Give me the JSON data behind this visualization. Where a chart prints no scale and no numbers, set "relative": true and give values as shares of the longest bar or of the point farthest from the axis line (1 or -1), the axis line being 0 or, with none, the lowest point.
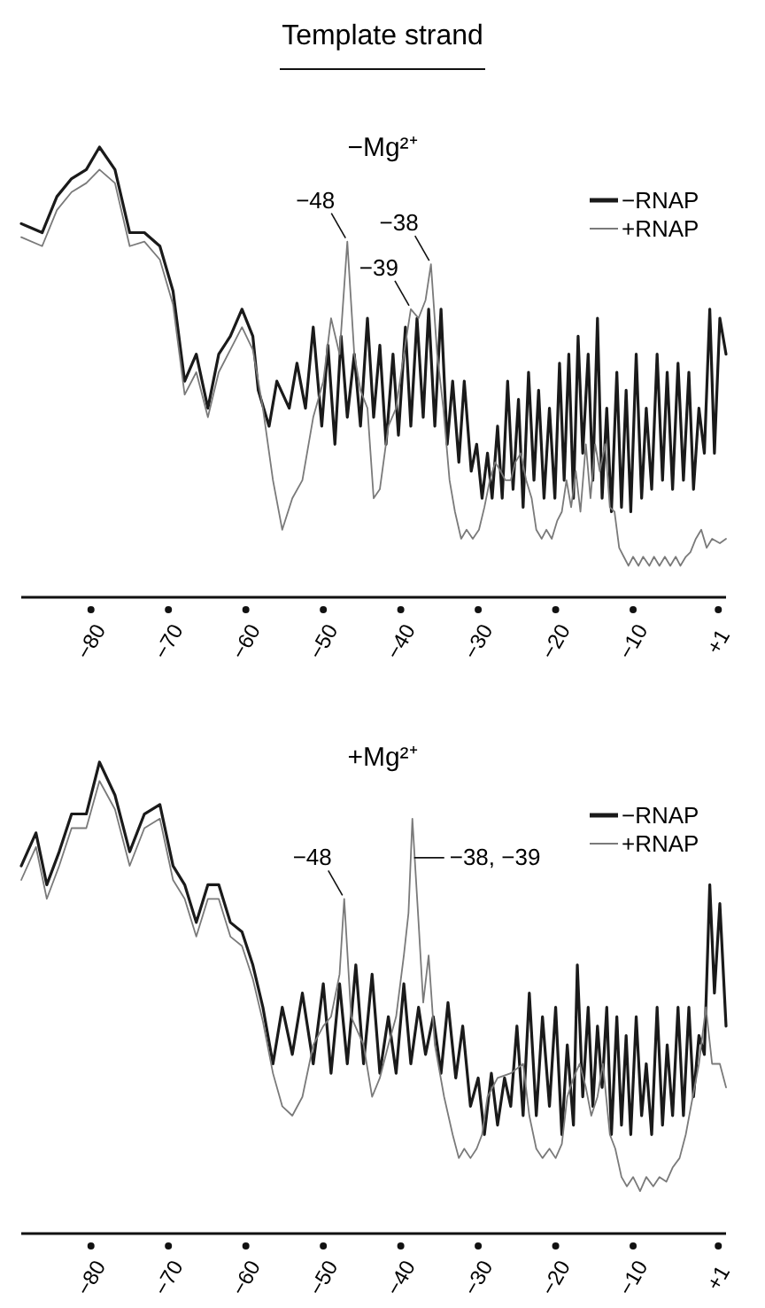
{
  "chart_data": [
    {
      "type": "line",
      "title": "Template strand",
      "subtitle": "−Mg²⁺",
      "relative": true,
      "legend": "right",
      "xlim": [
        -89,
        2
      ],
      "xticks": [
        -80,
        -70,
        -60,
        -50,
        -40,
        -30,
        -20,
        -10,
        {
          "value": 1,
          "label": "+1"
        }
      ],
      "annotations": [
        {
          "text": "−48",
          "x": -46.9,
          "y": 0.79
        },
        {
          "text": "−39",
          "x": -38.7,
          "y": 0.64
        },
        {
          "text": "−38",
          "x": -36.1,
          "y": 0.74
        }
      ],
      "series": [
        {
          "name": "−RNAP",
          "color": "#1a1a1a",
          "x": [
            -89,
            -86.3,
            -84.4,
            -82.5,
            -80.6,
            -78.9,
            -76.9,
            -75.0,
            -73.1,
            -71.1,
            -69.4,
            -67.9,
            -66.4,
            -64.9,
            -63.5,
            -62.0,
            -60.5,
            -59.1,
            -58.4,
            -57.0,
            -56.0,
            -54.4,
            -53.4,
            -52.3,
            -51.3,
            -50.2,
            -49.4,
            -48.5,
            -47.7,
            -46.9,
            -46.0,
            -45.2,
            -44.3,
            -43.5,
            -42.7,
            -41.9,
            -41.0,
            -40.3,
            -39.4,
            -38.7,
            -37.9,
            -37.1,
            -36.4,
            -35.6,
            -34.8,
            -34.0,
            -33.3,
            -32.5,
            -31.8,
            -30.9,
            -30.2,
            -29.5,
            -28.8,
            -28.2,
            -27.5,
            -26.9,
            -26.2,
            -25.5,
            -24.8,
            -24.2,
            -23.5,
            -22.8,
            -22.2,
            -21.5,
            -20.8,
            -20.1,
            -19.5,
            -18.9,
            -18.3,
            -17.7,
            -17.1,
            -16.5,
            -15.8,
            -15.2,
            -14.6,
            -14.0,
            -13.4,
            -12.8,
            -12.1,
            -11.5,
            -10.9,
            -10.3,
            -9.6,
            -8.9,
            -8.3,
            -7.6,
            -6.9,
            -6.2,
            -5.6,
            -4.9,
            -4.2,
            -3.5,
            -2.8,
            -2.2,
            -1.5,
            -0.8,
            -0.1,
            0.5,
            1.2,
            2.0
          ],
          "values": [
            0.83,
            0.81,
            0.89,
            0.93,
            0.95,
            1.0,
            0.95,
            0.81,
            0.81,
            0.78,
            0.68,
            0.48,
            0.54,
            0.42,
            0.54,
            0.58,
            0.64,
            0.58,
            0.46,
            0.38,
            0.48,
            0.42,
            0.52,
            0.42,
            0.6,
            0.38,
            0.56,
            0.34,
            0.58,
            0.4,
            0.54,
            0.38,
            0.62,
            0.4,
            0.56,
            0.34,
            0.54,
            0.36,
            0.6,
            0.38,
            0.62,
            0.4,
            0.64,
            0.38,
            0.64,
            0.34,
            0.48,
            0.3,
            0.48,
            0.28,
            0.34,
            0.22,
            0.32,
            0.22,
            0.38,
            0.22,
            0.48,
            0.24,
            0.44,
            0.2,
            0.5,
            0.26,
            0.46,
            0.22,
            0.42,
            0.22,
            0.52,
            0.26,
            0.54,
            0.22,
            0.58,
            0.32,
            0.54,
            0.26,
            0.62,
            0.22,
            0.42,
            0.19,
            0.5,
            0.2,
            0.46,
            0.19,
            0.54,
            0.22,
            0.42,
            0.24,
            0.54,
            0.26,
            0.5,
            0.24,
            0.52,
            0.26,
            0.5,
            0.24,
            0.42,
            0.32,
            0.64,
            0.32,
            0.62,
            0.54
          ]
        },
        {
          "name": "+RNAP",
          "color": "#7a7a7a",
          "x": [
            -89,
            -86.3,
            -84.4,
            -82.5,
            -80.6,
            -78.9,
            -76.9,
            -75.0,
            -73.1,
            -71.1,
            -69.4,
            -67.9,
            -66.4,
            -64.9,
            -63.5,
            -62.0,
            -60.5,
            -59.1,
            -57.8,
            -56.5,
            -55.3,
            -54.0,
            -52.7,
            -51.3,
            -50.0,
            -49.0,
            -47.9,
            -46.9,
            -46.0,
            -45.2,
            -44.3,
            -43.5,
            -42.7,
            -41.6,
            -40.6,
            -39.6,
            -38.7,
            -37.7,
            -36.8,
            -36.1,
            -35.3,
            -34.5,
            -33.7,
            -33.0,
            -32.2,
            -31.5,
            -30.7,
            -29.9,
            -29.2,
            -28.5,
            -27.8,
            -27.1,
            -26.5,
            -25.8,
            -25.2,
            -24.5,
            -23.8,
            -23.1,
            -22.5,
            -21.8,
            -21.2,
            -20.5,
            -19.8,
            -19.2,
            -18.6,
            -18.0,
            -17.4,
            -16.8,
            -16.1,
            -15.5,
            -14.9,
            -14.3,
            -13.6,
            -13.0,
            -12.4,
            -11.8,
            -11.2,
            -10.6,
            -10.0,
            -9.3,
            -8.7,
            -7.9,
            -7.3,
            -6.6,
            -5.9,
            -5.2,
            -4.5,
            -3.9,
            -3.2,
            -2.6,
            -1.9,
            -1.2,
            -0.5,
            0.2,
            1.2,
            2.0
          ],
          "values": [
            0.8,
            0.78,
            0.86,
            0.9,
            0.92,
            0.95,
            0.92,
            0.78,
            0.79,
            0.75,
            0.65,
            0.45,
            0.5,
            0.4,
            0.5,
            0.55,
            0.6,
            0.55,
            0.42,
            0.26,
            0.15,
            0.22,
            0.26,
            0.4,
            0.48,
            0.62,
            0.54,
            0.79,
            0.54,
            0.46,
            0.42,
            0.22,
            0.24,
            0.38,
            0.42,
            0.54,
            0.64,
            0.62,
            0.66,
            0.74,
            0.54,
            0.42,
            0.26,
            0.19,
            0.13,
            0.15,
            0.13,
            0.15,
            0.2,
            0.26,
            0.3,
            0.28,
            0.26,
            0.26,
            0.3,
            0.32,
            0.26,
            0.22,
            0.15,
            0.13,
            0.15,
            0.13,
            0.17,
            0.19,
            0.26,
            0.2,
            0.28,
            0.19,
            0.34,
            0.22,
            0.34,
            0.28,
            0.34,
            0.2,
            0.19,
            0.11,
            0.09,
            0.07,
            0.09,
            0.07,
            0.09,
            0.07,
            0.09,
            0.07,
            0.09,
            0.07,
            0.09,
            0.07,
            0.09,
            0.1,
            0.13,
            0.15,
            0.11,
            0.13,
            0.12,
            0.13
          ]
        }
      ]
    },
    {
      "type": "line",
      "subtitle": "+Mg²⁺",
      "relative": true,
      "legend": "right",
      "xlim": [
        -89,
        2
      ],
      "xticks": [
        -80,
        -70,
        -60,
        -50,
        -40,
        -30,
        -20,
        -10,
        {
          "value": 1,
          "label": "+1"
        }
      ],
      "annotations": [
        {
          "text": "−48",
          "x": -47.3,
          "y": 0.71
        },
        {
          "text": "−38, −39",
          "x": -38.5,
          "y": 0.88
        }
      ],
      "series": [
        {
          "name": "−RNAP",
          "color": "#1a1a1a",
          "x": [
            -89,
            -87.1,
            -85.7,
            -84.1,
            -82.5,
            -80.6,
            -78.9,
            -76.9,
            -75.0,
            -73.1,
            -71.1,
            -69.4,
            -67.9,
            -66.4,
            -64.9,
            -63.5,
            -62.0,
            -60.5,
            -59.1,
            -57.8,
            -56.5,
            -55.3,
            -54.0,
            -52.7,
            -51.3,
            -50.0,
            -49.0,
            -47.9,
            -46.9,
            -45.8,
            -44.8,
            -43.7,
            -42.7,
            -41.6,
            -40.6,
            -39.6,
            -38.7,
            -37.7,
            -36.8,
            -35.8,
            -34.8,
            -33.9,
            -32.9,
            -32.0,
            -31.0,
            -30.0,
            -29.2,
            -28.3,
            -27.5,
            -26.6,
            -25.8,
            -25.0,
            -24.2,
            -23.4,
            -22.5,
            -21.7,
            -20.8,
            -20.0,
            -19.2,
            -18.5,
            -17.7,
            -17.2,
            -16.5,
            -15.8,
            -15.2,
            -14.6,
            -14.0,
            -13.4,
            -12.8,
            -12.1,
            -11.5,
            -10.9,
            -10.3,
            -9.6,
            -8.9,
            -8.3,
            -7.6,
            -6.9,
            -6.2,
            -5.6,
            -4.9,
            -4.2,
            -3.5,
            -2.8,
            -2.2,
            -1.5,
            -0.8,
            -0.1,
            0.5,
            1.2,
            2.0
          ],
          "values": [
            0.78,
            0.85,
            0.74,
            0.81,
            0.89,
            0.89,
            1.0,
            0.93,
            0.81,
            0.89,
            0.91,
            0.78,
            0.74,
            0.66,
            0.74,
            0.74,
            0.66,
            0.64,
            0.57,
            0.48,
            0.36,
            0.48,
            0.38,
            0.51,
            0.36,
            0.53,
            0.34,
            0.53,
            0.36,
            0.57,
            0.36,
            0.55,
            0.34,
            0.46,
            0.34,
            0.53,
            0.36,
            0.48,
            0.38,
            0.46,
            0.34,
            0.49,
            0.33,
            0.44,
            0.27,
            0.33,
            0.21,
            0.34,
            0.23,
            0.33,
            0.27,
            0.44,
            0.25,
            0.51,
            0.25,
            0.46,
            0.27,
            0.48,
            0.21,
            0.4,
            0.23,
            0.57,
            0.29,
            0.48,
            0.27,
            0.44,
            0.31,
            0.48,
            0.21,
            0.46,
            0.23,
            0.42,
            0.21,
            0.46,
            0.25,
            0.36,
            0.21,
            0.48,
            0.23,
            0.4,
            0.25,
            0.48,
            0.25,
            0.48,
            0.29,
            0.42,
            0.38,
            0.74,
            0.51,
            0.7,
            0.44
          ]
        },
        {
          "name": "+RNAP",
          "color": "#7a7a7a",
          "x": [
            -89,
            -87.1,
            -85.7,
            -84.1,
            -82.5,
            -80.6,
            -78.9,
            -76.9,
            -75.0,
            -73.1,
            -71.1,
            -69.4,
            -67.9,
            -66.4,
            -64.9,
            -63.5,
            -62.0,
            -60.5,
            -59.1,
            -57.8,
            -56.5,
            -55.3,
            -54.0,
            -52.7,
            -51.3,
            -50.0,
            -49.0,
            -47.9,
            -47.3,
            -46.4,
            -44.8,
            -43.7,
            -42.7,
            -41.6,
            -40.6,
            -39.6,
            -39.0,
            -38.5,
            -37.7,
            -37.1,
            -36.4,
            -35.6,
            -34.4,
            -33.3,
            -32.5,
            -31.8,
            -31.0,
            -30.2,
            -29.5,
            -28.8,
            -27.5,
            -25.8,
            -24.2,
            -23.4,
            -22.5,
            -21.7,
            -20.8,
            -20.0,
            -19.2,
            -18.5,
            -17.7,
            -16.9,
            -16.1,
            -15.4,
            -14.6,
            -13.9,
            -13.0,
            -12.3,
            -11.5,
            -10.8,
            -10.0,
            -9.1,
            -8.3,
            -7.4,
            -6.6,
            -5.7,
            -4.9,
            -4.0,
            -3.2,
            -2.3,
            -1.5,
            -0.6,
            0.2,
            1.2,
            2.0
          ],
          "values": [
            0.75,
            0.82,
            0.71,
            0.78,
            0.86,
            0.86,
            0.96,
            0.9,
            0.78,
            0.86,
            0.88,
            0.75,
            0.71,
            0.63,
            0.71,
            0.71,
            0.63,
            0.61,
            0.54,
            0.45,
            0.34,
            0.27,
            0.25,
            0.29,
            0.4,
            0.44,
            0.46,
            0.55,
            0.71,
            0.46,
            0.4,
            0.29,
            0.33,
            0.4,
            0.46,
            0.59,
            0.68,
            0.88,
            0.66,
            0.49,
            0.59,
            0.4,
            0.29,
            0.21,
            0.16,
            0.18,
            0.16,
            0.18,
            0.21,
            0.29,
            0.33,
            0.34,
            0.36,
            0.25,
            0.18,
            0.16,
            0.18,
            0.16,
            0.19,
            0.29,
            0.33,
            0.36,
            0.31,
            0.25,
            0.29,
            0.36,
            0.21,
            0.18,
            0.12,
            0.1,
            0.12,
            0.09,
            0.12,
            0.1,
            0.12,
            0.11,
            0.14,
            0.16,
            0.21,
            0.29,
            0.36,
            0.48,
            0.36,
            0.36,
            0.31
          ]
        }
      ]
    }
  ]
}
